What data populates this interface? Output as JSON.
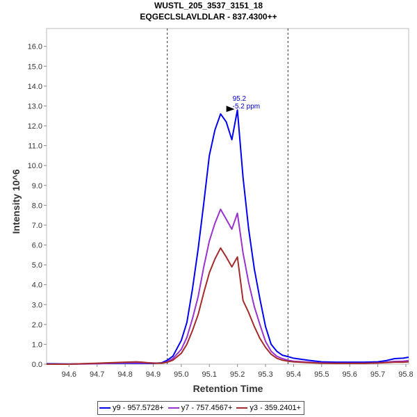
{
  "chart_data": {
    "type": "line",
    "title": "WUSTL_205_3537_3151_18",
    "subtitle": "EQGECLSLAVLDLAR - 837.4300++",
    "xlabel": "Retention Time",
    "ylabel": "Intensity 10^6",
    "xlim": [
      94.52,
      95.81
    ],
    "ylim": [
      0,
      16.9
    ],
    "x_ticks": [
      94.6,
      94.7,
      94.8,
      94.9,
      95.0,
      95.1,
      95.2,
      95.3,
      95.4,
      95.5,
      95.6,
      95.7,
      95.8
    ],
    "x_tick_labels": [
      "94.6",
      "94.7",
      "94.8",
      "94.9",
      "95.0",
      "95.1",
      "95.2",
      "95.3",
      "95.4",
      "95.5",
      "95.6",
      "95.7",
      "95.8"
    ],
    "y_ticks": [
      0,
      1,
      2,
      3,
      4,
      5,
      6,
      7,
      8,
      9,
      10,
      11,
      12,
      13,
      14,
      15,
      16
    ],
    "y_tick_labels": [
      "0.0",
      "1.0",
      "2.0",
      "3.0",
      "4.0",
      "5.0",
      "6.0",
      "7.0",
      "8.0",
      "9.0",
      "10.0",
      "11.0",
      "12.0",
      "13.0",
      "14.0",
      "15.0",
      "16.0"
    ],
    "integration_boundaries": [
      94.95,
      95.38
    ],
    "peak_annotation": {
      "x": 95.2,
      "y": 12.8,
      "label": "95.2",
      "ppm_label": "-5.2 ppm"
    },
    "legend_position": "bottom-center",
    "series": [
      {
        "name": "y9 - 957.5728+",
        "color": "#0000ee",
        "x": [
          94.52,
          94.6,
          94.7,
          94.8,
          94.9,
          94.93,
          94.95,
          94.97,
          95.0,
          95.02,
          95.04,
          95.06,
          95.08,
          95.1,
          95.12,
          95.14,
          95.16,
          95.18,
          95.2,
          95.22,
          95.24,
          95.26,
          95.28,
          95.3,
          95.32,
          95.34,
          95.36,
          95.38,
          95.4,
          95.45,
          95.5,
          95.55,
          95.6,
          95.65,
          95.7,
          95.73,
          95.76,
          95.79,
          95.81
        ],
        "y": [
          0.02,
          0.01,
          0.03,
          0.05,
          0.04,
          0.07,
          0.2,
          0.4,
          1.2,
          2.1,
          3.8,
          5.8,
          8.1,
          10.5,
          11.8,
          12.6,
          12.2,
          11.3,
          12.8,
          9.4,
          6.8,
          4.8,
          3.3,
          1.9,
          1.0,
          0.65,
          0.45,
          0.38,
          0.3,
          0.2,
          0.12,
          0.1,
          0.1,
          0.1,
          0.12,
          0.18,
          0.28,
          0.3,
          0.35
        ]
      },
      {
        "name": "y7 - 757.4567+",
        "color": "#9a32cd",
        "x": [
          94.52,
          94.6,
          94.7,
          94.8,
          94.9,
          94.93,
          94.95,
          94.97,
          95.0,
          95.02,
          95.04,
          95.06,
          95.08,
          95.1,
          95.12,
          95.14,
          95.16,
          95.18,
          95.2,
          95.22,
          95.24,
          95.26,
          95.28,
          95.3,
          95.32,
          95.34,
          95.36,
          95.38,
          95.4,
          95.45,
          95.5,
          95.55,
          95.6,
          95.65,
          95.7,
          95.73,
          95.76,
          95.79,
          95.81
        ],
        "y": [
          0.0,
          0.0,
          0.02,
          0.08,
          0.06,
          0.05,
          0.12,
          0.28,
          0.75,
          1.35,
          2.3,
          3.4,
          4.9,
          6.2,
          7.1,
          7.8,
          7.3,
          6.8,
          7.6,
          5.6,
          4.1,
          2.9,
          2.0,
          1.15,
          0.65,
          0.4,
          0.28,
          0.2,
          0.15,
          0.1,
          0.06,
          0.05,
          0.05,
          0.05,
          0.06,
          0.1,
          0.14,
          0.15,
          0.18
        ]
      },
      {
        "name": "y3 - 359.2401+",
        "color": "#a52a2a",
        "x": [
          94.52,
          94.6,
          94.7,
          94.8,
          94.84,
          94.86,
          94.9,
          94.93,
          94.95,
          94.97,
          95.0,
          95.02,
          95.04,
          95.06,
          95.08,
          95.1,
          95.12,
          95.14,
          95.16,
          95.18,
          95.2,
          95.22,
          95.24,
          95.26,
          95.28,
          95.3,
          95.32,
          95.34,
          95.36,
          95.38,
          95.4,
          95.45,
          95.5,
          95.55,
          95.6,
          95.65,
          95.7,
          95.73,
          95.76,
          95.79,
          95.81
        ],
        "y": [
          0.0,
          0.0,
          0.05,
          0.1,
          0.12,
          0.1,
          0.05,
          0.05,
          0.1,
          0.2,
          0.55,
          1.0,
          1.7,
          2.5,
          3.6,
          4.6,
          5.3,
          5.85,
          5.4,
          4.9,
          5.4,
          3.2,
          2.6,
          1.9,
          1.3,
          0.85,
          0.5,
          0.3,
          0.2,
          0.15,
          0.12,
          0.08,
          0.05,
          0.04,
          0.04,
          0.04,
          0.06,
          0.08,
          0.1,
          0.1,
          0.12
        ]
      }
    ]
  }
}
